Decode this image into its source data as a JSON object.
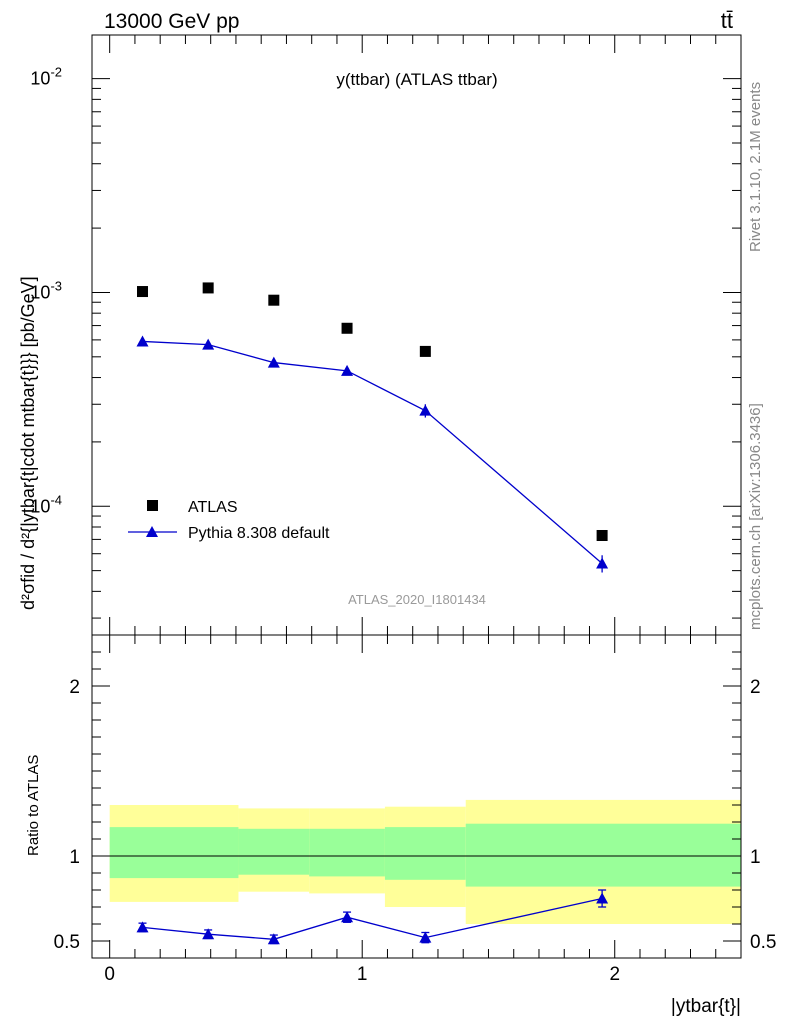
{
  "header": {
    "energy_label": "13000 GeV pp",
    "process_label": "tt̄",
    "side_label_top": "Rivet 3.1.10,  2.1M events",
    "side_label_bottom": "mcplots.cern.ch [arXiv:1306.3436]"
  },
  "chart_data": [
    {
      "type": "scatter",
      "title": "y(ttbar) (ATLAS ttbar)",
      "watermark": "ATLAS_2020_I1801434",
      "ylabel": "d²σfid / d²{|ytbar{t|cdot mtbar{t}}} [pb/GeV]",
      "yscale": "log",
      "xlim": [
        -0.07,
        2.5
      ],
      "ylim": [
        2.5e-05,
        0.016
      ],
      "y_tick_labels": [
        "10^-2",
        "10^-3",
        "10^-4"
      ],
      "series": [
        {
          "name": "ATLAS",
          "marker": "square",
          "color": "#000000",
          "x": [
            0.13,
            0.39,
            0.65,
            0.94,
            1.25,
            1.95
          ],
          "y": [
            0.00101,
            0.00105,
            0.00092,
            0.00068,
            0.00053,
            7.3e-05
          ]
        },
        {
          "name": "Pythia 8.308 default",
          "marker": "triangle",
          "color": "#0000cc",
          "x": [
            0.13,
            0.39,
            0.65,
            0.94,
            1.25,
            1.95
          ],
          "y": [
            0.00059,
            0.00057,
            0.00047,
            0.00043,
            0.00028,
            5.4e-05
          ],
          "yerr": [
            2.5e-05,
            2.5e-05,
            2e-05,
            2e-05,
            2e-05,
            5e-06
          ]
        }
      ]
    },
    {
      "type": "scatter",
      "ylabel": "Ratio to ATLAS",
      "xlabel": "|ytbar{t}|",
      "xlim": [
        -0.07,
        2.5
      ],
      "ylim": [
        0.4,
        2.3
      ],
      "x_tick_labels": [
        "0",
        "1",
        "2"
      ],
      "y_tick_labels": [
        "0.5",
        "1",
        "2"
      ],
      "bands": [
        {
          "x0": 0.0,
          "x1": 0.51,
          "green": [
            0.87,
            1.17
          ],
          "yellow": [
            0.73,
            1.3
          ]
        },
        {
          "x0": 0.51,
          "x1": 0.79,
          "green": [
            0.89,
            1.16
          ],
          "yellow": [
            0.79,
            1.28
          ]
        },
        {
          "x0": 0.79,
          "x1": 1.09,
          "green": [
            0.88,
            1.16
          ],
          "yellow": [
            0.78,
            1.28
          ]
        },
        {
          "x0": 1.09,
          "x1": 1.41,
          "green": [
            0.86,
            1.17
          ],
          "yellow": [
            0.7,
            1.29
          ]
        },
        {
          "x0": 1.41,
          "x1": 2.5,
          "green": [
            0.82,
            1.19
          ],
          "yellow": [
            0.6,
            1.33
          ]
        }
      ],
      "series": [
        {
          "name": "Pythia 8.308 default",
          "color": "#0000cc",
          "x": [
            0.13,
            0.39,
            0.65,
            0.94,
            1.25,
            1.95
          ],
          "y": [
            0.58,
            0.54,
            0.51,
            0.64,
            0.52,
            0.75
          ],
          "yerr": [
            0.025,
            0.025,
            0.025,
            0.03,
            0.03,
            0.05
          ]
        }
      ]
    }
  ]
}
